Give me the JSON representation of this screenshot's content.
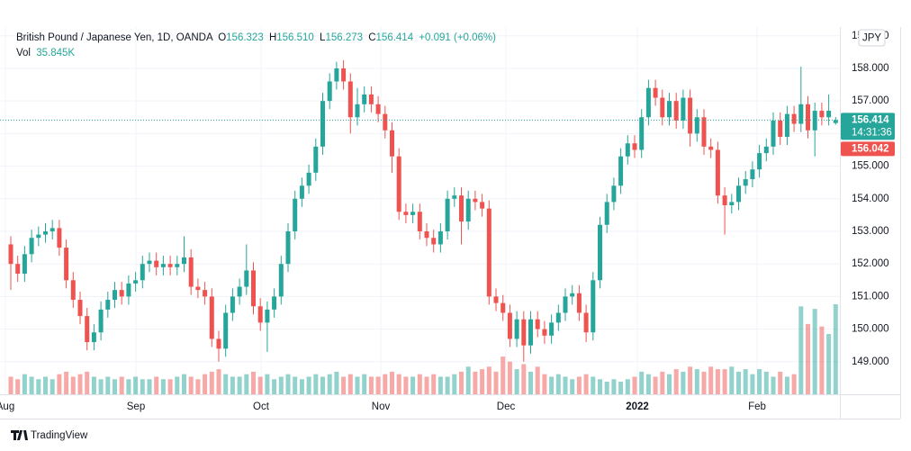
{
  "chart_data": {
    "type": "candlestick",
    "title": "British Pound / Japanese Yen, 1D, OANDA",
    "ohlc_keys": [
      "O",
      "H",
      "L",
      "C"
    ],
    "ohlc_labels": [
      "156.323",
      "156.510",
      "156.273",
      "156.414"
    ],
    "change_label": "+0.091 (+0.06%)",
    "volume_title": "Vol",
    "volume_label": "35.845K",
    "currency": "JPY",
    "last_price_label": "156.414",
    "countdown": "14:31:36",
    "other_price_label": "156.042",
    "time_labels": [
      "Aug",
      "Sep",
      "Oct",
      "Nov",
      "Dec",
      "2022",
      "Feb"
    ],
    "brand": "TradingView",
    "up_color": "#26a69a",
    "down_color": "#ef5350",
    "grid": true,
    "ylim": [
      148.0,
      159.27
    ],
    "yticks": [
      {
        "value": 149,
        "label": "149.000"
      },
      {
        "value": 150,
        "label": "150.000"
      },
      {
        "value": 151,
        "label": "151.000"
      },
      {
        "value": 152,
        "label": "152.000"
      },
      {
        "value": 153,
        "label": "153.000"
      },
      {
        "value": 154,
        "label": "154.000"
      },
      {
        "value": 155,
        "label": "155.000"
      },
      {
        "value": 156,
        "label": "156.000"
      },
      {
        "value": 157,
        "label": "157.000"
      },
      {
        "value": 158,
        "label": "158.000"
      },
      {
        "value": 159,
        "label": "159.000"
      }
    ],
    "open": [
      152.6,
      152.0,
      151.7,
      152.3,
      152.8,
      152.9,
      153.0,
      153.1,
      152.5,
      151.5,
      150.9,
      150.4,
      149.6,
      149.9,
      150.6,
      150.9,
      151.2,
      151.0,
      151.4,
      151.5,
      152.0,
      152.1,
      151.9,
      152.0,
      151.9,
      152.0,
      152.2,
      151.3,
      151.2,
      151.0,
      149.7,
      149.4,
      150.5,
      151.0,
      151.3,
      151.8,
      150.7,
      150.2,
      150.6,
      151.0,
      152.0,
      153.0,
      154.0,
      154.4,
      154.8,
      155.6,
      157.0,
      157.6,
      158.0,
      157.6,
      156.5,
      156.9,
      157.2,
      156.9,
      156.6,
      156.1,
      155.3,
      153.6,
      153.5,
      153.6,
      153.0,
      152.8,
      152.6,
      153.0,
      154.0,
      154.1,
      153.3,
      154.0,
      153.9,
      153.7,
      151.0,
      150.8,
      150.5,
      149.7,
      150.3,
      149.5,
      150.3,
      150.0,
      149.8,
      150.2,
      150.5,
      151.0,
      151.1,
      150.5,
      149.9,
      151.5,
      153.2,
      153.9,
      154.4,
      155.3,
      155.7,
      155.5,
      156.5,
      157.4,
      157.1,
      156.5,
      157.0,
      156.4,
      157.1,
      156.0,
      156.5,
      155.6,
      155.5,
      154.1,
      153.8,
      153.9,
      154.4,
      154.6,
      154.9,
      155.4,
      155.6,
      156.4,
      155.9,
      156.6,
      156.3,
      156.9,
      156.1,
      156.7,
      156.5,
      156.323
    ],
    "high": [
      152.85,
      152.25,
      152.55,
      153.05,
      153.15,
      153.25,
      153.35,
      153.35,
      152.75,
      151.75,
      151.15,
      150.65,
      150.15,
      150.85,
      151.15,
      151.45,
      151.45,
      151.65,
      151.75,
      152.25,
      152.35,
      152.35,
      152.25,
      152.25,
      152.25,
      152.85,
      152.45,
      151.55,
      151.45,
      151.25,
      149.95,
      150.75,
      151.25,
      151.55,
      152.6,
      152.05,
      150.95,
      150.85,
      151.25,
      152.25,
      153.25,
      154.25,
      154.65,
      155.05,
      155.85,
      157.25,
      157.85,
      158.2,
      158.25,
      157.85,
      157.4,
      157.45,
      157.45,
      157.15,
      156.85,
      156.35,
      155.55,
      153.85,
      153.85,
      153.85,
      153.25,
      153.05,
      153.25,
      154.25,
      154.35,
      154.35,
      154.25,
      154.25,
      154.15,
      153.95,
      151.25,
      151.05,
      150.75,
      150.55,
      150.55,
      150.55,
      150.55,
      150.25,
      150.45,
      150.75,
      151.25,
      151.35,
      151.35,
      150.75,
      151.75,
      153.45,
      154.15,
      154.65,
      155.55,
      155.95,
      155.95,
      156.75,
      157.65,
      157.65,
      157.35,
      157.25,
      157.25,
      157.35,
      157.35,
      156.75,
      156.75,
      155.85,
      155.75,
      154.35,
      154.15,
      154.65,
      154.85,
      155.15,
      155.65,
      155.85,
      156.65,
      156.65,
      156.85,
      156.85,
      158.05,
      157.15,
      156.95,
      156.95,
      157.2,
      156.51
    ],
    "low": [
      151.2,
      151.45,
      151.45,
      152.05,
      152.55,
      152.65,
      152.75,
      152.25,
      151.25,
      150.65,
      150.15,
      149.35,
      149.35,
      149.65,
      150.35,
      150.65,
      150.75,
      150.75,
      151.15,
      151.25,
      151.75,
      151.65,
      151.65,
      151.65,
      151.65,
      151.75,
      151.05,
      150.95,
      150.75,
      149.45,
      149.0,
      149.15,
      150.25,
      150.75,
      151.05,
      150.45,
      149.95,
      149.3,
      150.35,
      150.75,
      151.75,
      152.75,
      153.75,
      154.15,
      154.55,
      155.35,
      156.75,
      157.35,
      157.35,
      156.0,
      156.25,
      156.65,
      156.65,
      156.35,
      155.85,
      154.8,
      153.35,
      153.25,
      153.25,
      152.75,
      152.55,
      152.35,
      152.35,
      152.75,
      153.75,
      152.6,
      153.05,
      153.65,
      153.45,
      150.75,
      150.55,
      150.25,
      149.45,
      149.45,
      149.0,
      149.25,
      149.75,
      149.55,
      149.55,
      149.95,
      150.25,
      150.75,
      150.25,
      149.6,
      149.65,
      151.25,
      152.95,
      153.65,
      154.15,
      155.05,
      155.25,
      155.25,
      156.25,
      156.85,
      156.25,
      156.25,
      156.15,
      156.15,
      155.6,
      155.75,
      155.35,
      155.25,
      153.85,
      152.9,
      153.55,
      153.65,
      154.15,
      154.35,
      154.65,
      155.15,
      155.35,
      155.65,
      155.65,
      156.05,
      156.05,
      155.85,
      155.3,
      156.25,
      156.25,
      156.273
    ],
    "close": [
      152.0,
      151.7,
      152.3,
      152.8,
      152.9,
      153.0,
      153.1,
      152.5,
      151.5,
      150.9,
      150.4,
      149.6,
      149.9,
      150.6,
      150.9,
      151.2,
      151.0,
      151.4,
      151.5,
      152.0,
      152.1,
      151.9,
      152.0,
      151.9,
      152.0,
      152.2,
      151.3,
      151.2,
      151.0,
      149.7,
      149.4,
      150.5,
      151.0,
      151.3,
      151.8,
      150.7,
      150.2,
      150.6,
      151.0,
      152.0,
      153.0,
      154.0,
      154.4,
      154.8,
      155.6,
      157.0,
      157.6,
      158.0,
      157.6,
      156.5,
      156.9,
      157.2,
      156.9,
      156.6,
      156.1,
      155.3,
      153.6,
      153.5,
      153.6,
      153.0,
      152.8,
      152.6,
      153.0,
      154.0,
      154.1,
      153.3,
      154.0,
      153.9,
      153.7,
      151.0,
      150.8,
      150.5,
      149.7,
      150.3,
      149.5,
      150.3,
      150.0,
      149.8,
      150.2,
      150.5,
      151.0,
      151.1,
      150.5,
      149.9,
      151.5,
      153.2,
      153.9,
      154.4,
      155.3,
      155.7,
      155.5,
      156.5,
      157.4,
      157.1,
      156.5,
      157.0,
      156.4,
      157.1,
      156.0,
      156.5,
      155.6,
      155.5,
      154.1,
      153.8,
      153.9,
      154.4,
      154.6,
      154.9,
      155.4,
      155.6,
      156.4,
      155.9,
      156.6,
      156.3,
      156.9,
      156.1,
      156.7,
      156.5,
      156.7,
      156.414
    ],
    "volume": [
      7,
      6,
      8,
      7,
      6,
      7,
      6,
      8,
      9,
      7,
      8,
      9,
      7,
      6,
      7,
      6,
      7,
      6,
      7,
      6,
      6,
      7,
      6,
      6,
      7,
      8,
      7,
      6,
      8,
      9,
      10,
      8,
      7,
      7,
      8,
      9,
      7,
      8,
      6,
      7,
      8,
      7,
      6,
      7,
      8,
      7,
      8,
      9,
      7,
      8,
      7,
      8,
      7,
      7,
      8,
      9,
      8,
      7,
      7,
      8,
      7,
      8,
      7,
      7,
      8,
      9,
      11,
      9,
      10,
      11,
      9,
      15,
      13,
      10,
      12,
      9,
      11,
      8,
      7,
      8,
      7,
      6,
      7,
      8,
      7,
      6,
      5,
      6,
      5,
      6,
      7,
      9,
      8,
      7,
      9,
      8,
      10,
      9,
      11,
      10,
      9,
      11,
      10,
      10,
      11,
      9,
      10,
      8,
      10,
      9,
      7,
      9,
      7,
      8,
      35,
      28,
      34,
      27,
      24,
      35.845
    ]
  }
}
